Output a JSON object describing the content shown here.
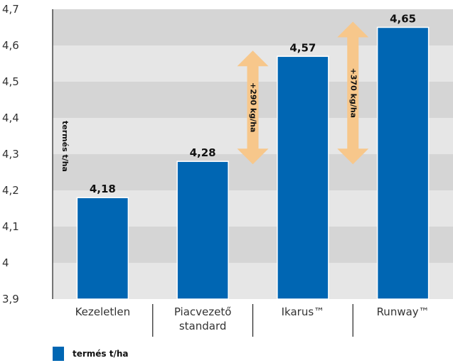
{
  "chart_data": {
    "type": "bar",
    "categories": [
      [
        "Kezeletlen"
      ],
      [
        "Piacvezető",
        "standard"
      ],
      [
        "Ikarus™"
      ],
      [
        "Runway™"
      ]
    ],
    "series": [
      {
        "name": "termés t/ha",
        "values": [
          4.18,
          4.28,
          4.57,
          4.65
        ],
        "color": "#0066b3"
      }
    ],
    "value_labels": [
      "4,18",
      "4,28",
      "4,57",
      "4,65"
    ],
    "ylabel": "termés t/ha",
    "ylim": [
      3.9,
      4.7
    ],
    "yticks": [
      3.9,
      4.0,
      4.1,
      4.2,
      4.3,
      4.4,
      4.5,
      4.6,
      4.7
    ],
    "ytick_labels": [
      "3,9",
      "4",
      "4,1",
      "4,2",
      "4,3",
      "4,4",
      "4,5",
      "4,6",
      "4,7"
    ],
    "band_colors": [
      "#e6e6e6",
      "#d5d5d5"
    ],
    "annotations": [
      {
        "text": "+290 kg/ha",
        "between_categories": [
          1,
          2
        ],
        "from": 4.28,
        "to": 4.57,
        "color": "#f7c78b"
      },
      {
        "text": "+370 kg/ha",
        "between_categories": [
          2,
          3
        ],
        "from": 4.28,
        "to": 4.65,
        "color": "#f7c78b"
      }
    ],
    "legend": {
      "position": "bottom-left",
      "label": "termés t/ha"
    },
    "grid": false
  }
}
